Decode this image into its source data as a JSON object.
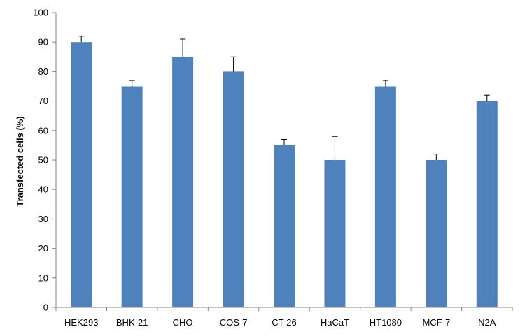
{
  "chart_data": {
    "type": "bar",
    "title": "",
    "xlabel": "",
    "ylabel": "Transfected cells (%)",
    "ylim": [
      0,
      100
    ],
    "yticks": [
      0,
      10,
      20,
      30,
      40,
      50,
      60,
      70,
      80,
      90,
      100
    ],
    "grid": false,
    "legend": "none",
    "bar_color": "#4f81bd",
    "categories": [
      "HEK293",
      "BHK-21",
      "CHO",
      "COS-7",
      "CT-26",
      "HaCaT",
      "HT1080",
      "MCF-7",
      "N2A"
    ],
    "values": [
      90,
      75,
      85,
      80,
      55,
      50,
      75,
      50,
      70
    ],
    "error_plus": [
      2,
      2,
      6,
      5,
      2,
      8,
      2,
      2,
      2
    ]
  }
}
